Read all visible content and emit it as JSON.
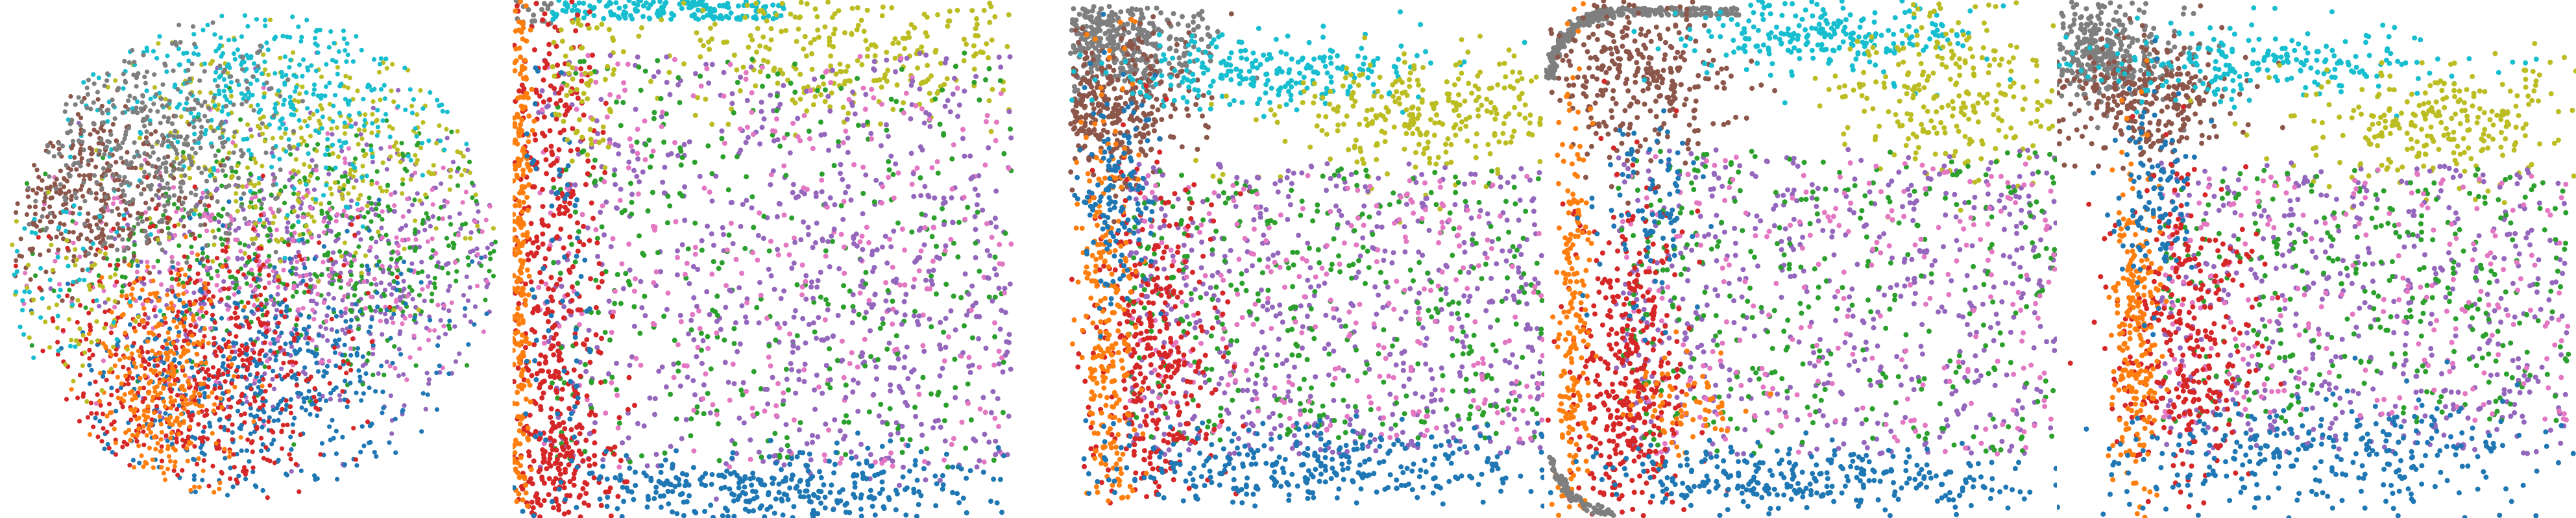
{
  "palette": {
    "blue": "#1f77b4",
    "orange": "#ff7f0e",
    "green": "#2ca02c",
    "red": "#d62728",
    "purple": "#9467bd",
    "brown": "#8c564b",
    "pink": "#e377c2",
    "gray": "#7f7f7f",
    "olive": "#bcbd22",
    "cyan": "#17becf"
  },
  "chart_data": [
    {
      "type": "scatter",
      "title": "",
      "xlabel": "",
      "ylabel": "",
      "axes_visible": false,
      "grid": false,
      "legend": "none",
      "point_color_groups": [
        "blue",
        "orange",
        "green",
        "red",
        "purple",
        "brown",
        "pink",
        "gray",
        "olive",
        "cyan"
      ]
    },
    {
      "type": "scatter",
      "title": "",
      "xlabel": "",
      "ylabel": "",
      "axes_visible": false,
      "grid": false,
      "legend": "none",
      "point_color_groups": [
        "blue",
        "orange",
        "green",
        "red",
        "purple",
        "brown",
        "pink",
        "gray",
        "olive",
        "cyan"
      ]
    },
    {
      "type": "scatter",
      "title": "",
      "xlabel": "",
      "ylabel": "",
      "axes_visible": false,
      "grid": false,
      "legend": "none",
      "point_color_groups": [
        "blue",
        "orange",
        "green",
        "red",
        "purple",
        "brown",
        "pink",
        "gray",
        "olive",
        "cyan"
      ]
    },
    {
      "type": "scatter",
      "title": "",
      "xlabel": "",
      "ylabel": "",
      "axes_visible": false,
      "grid": false,
      "legend": "none",
      "point_color_groups": [
        "blue",
        "orange",
        "green",
        "red",
        "purple",
        "brown",
        "pink",
        "gray",
        "olive",
        "cyan"
      ]
    },
    {
      "type": "scatter",
      "title": "",
      "xlabel": "",
      "ylabel": "",
      "axes_visible": false,
      "grid": false,
      "legend": "none",
      "point_color_groups": [
        "blue",
        "orange",
        "green",
        "red",
        "purple",
        "brown",
        "pink",
        "gray",
        "olive",
        "cyan"
      ]
    }
  ]
}
